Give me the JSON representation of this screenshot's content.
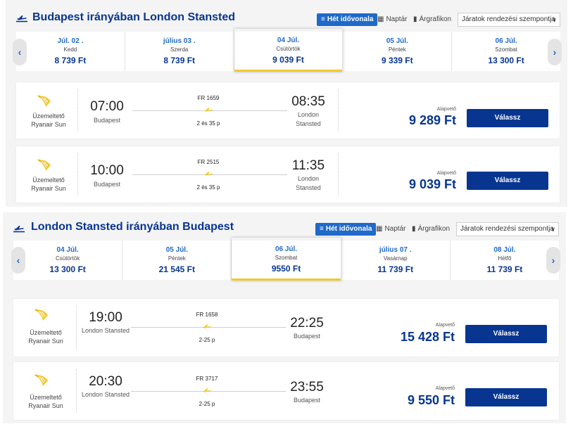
{
  "outbound": {
    "title": "Budapest irányában London Stansted",
    "view_options": {
      "week_label": "Hét idővonala",
      "calendar_label": "Naptár",
      "chart_label": "Árgrafikon"
    },
    "sort_label": "Járatok rendezési szempontja",
    "dates": [
      {
        "date": "Júl. 02 .",
        "day": "Kedd",
        "price": "8 739 Ft",
        "selected": false
      },
      {
        "date": "július 03  .",
        "day": "Szerda",
        "price": "8 739 Ft",
        "selected": false
      },
      {
        "date": "04  Júl.",
        "day": "Csütörtök",
        "price": "9 039 Ft",
        "selected": true
      },
      {
        "date": "05  Júl.",
        "day": "Péntek",
        "price": "9 339 Ft",
        "selected": false
      },
      {
        "date": "06  Júl.",
        "day": "Szombat",
        "price": "13 300 Ft",
        "selected": false
      }
    ],
    "flights": [
      {
        "operator_label": "Üzemeltető",
        "operator_name": "Ryanair Sun",
        "departure_time": "07:00",
        "departure_city": "Budapest",
        "flight_number": "FR 1659",
        "duration": "2 és 35 p",
        "arrival_time": "08:35",
        "arrival_city": "London Stansted",
        "fare_label": "Alapvető",
        "price": "9 289 Ft",
        "button_label": "Válassz"
      },
      {
        "operator_label": "Üzemeltető",
        "operator_name": "Ryanair Sun",
        "departure_time": "10:00",
        "departure_city": "Budapest",
        "flight_number": "FR 2515",
        "duration": "2 és 35 p",
        "arrival_time": "11:35",
        "arrival_city": "London Stansted",
        "fare_label": "Alapvető",
        "price": "9 039 Ft",
        "button_label": "Válassz"
      }
    ]
  },
  "return": {
    "title": "London Stansted irányában Budapest",
    "view_options": {
      "week_label": "Hét idővonala",
      "calendar_label": "Naptár",
      "chart_label": "Árgrafikon"
    },
    "sort_label": "Járatok rendezési szempontja",
    "dates": [
      {
        "date": "04  Júl.",
        "day": "Csütörtök",
        "price": "13 300 Ft",
        "selected": false
      },
      {
        "date": "05  Júl.",
        "day": "Péntek",
        "price": "21 545 Ft",
        "selected": false
      },
      {
        "date": "06  Júl.",
        "day": "Szombat",
        "price": "9550 Ft",
        "selected": true
      },
      {
        "date": "július 07  .",
        "day": "Vasárnap",
        "price": "11 739 Ft",
        "selected": false
      },
      {
        "date": "08  Júl.",
        "day": "Hétfő",
        "price": "11 739 Ft",
        "selected": false
      }
    ],
    "flights": [
      {
        "operator_label": "Üzemeltető",
        "operator_name": "Ryanair Sun",
        "departure_time": "19:00",
        "departure_city": "London Stansted",
        "flight_number": "FR 1658",
        "duration": "2-25 p",
        "arrival_time": "22:25",
        "arrival_city": "Budapest",
        "fare_label": "Alapvető",
        "price": "15 428 Ft",
        "button_label": "Válassz"
      },
      {
        "operator_label": "Üzemeltető",
        "operator_name": "Ryanair Sun",
        "departure_time": "20:30",
        "departure_city": "London Stansted",
        "flight_number": "FR 3717",
        "duration": "2-25 p",
        "arrival_time": "23:55",
        "arrival_city": "Budapest",
        "fare_label": "Alapvető",
        "price": "9 550 Ft",
        "button_label": "Válassz"
      }
    ]
  },
  "icons": {
    "plane": "plane-icon",
    "logo": "ryanair-harp-logo",
    "prev": "chevron-left-icon",
    "next": "chevron-right-icon"
  },
  "colors": {
    "brand_blue": "#073590",
    "accent_blue": "#1f69c8",
    "yellow": "#f1c933",
    "panel_bg": "#f4f4f4"
  }
}
